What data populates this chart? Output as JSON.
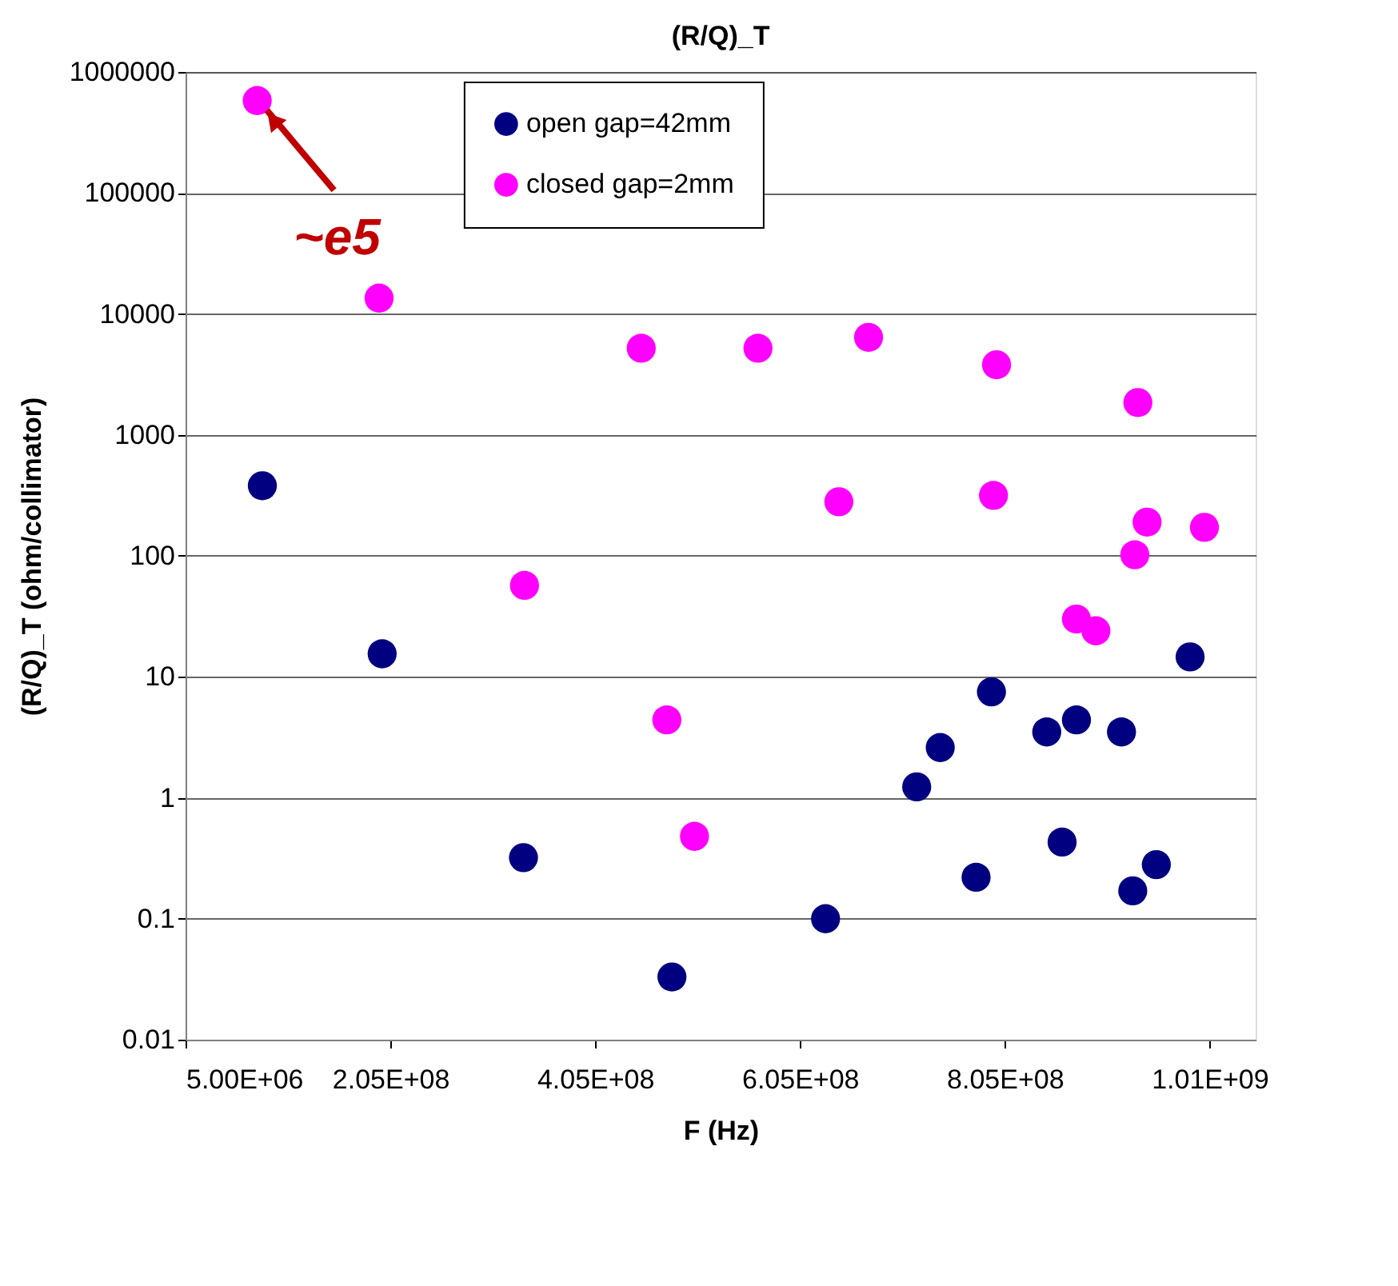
{
  "chart_data": {
    "type": "scatter",
    "title": "(R/Q)_T",
    "xlabel": "F (Hz)",
    "ylabel": "(R/Q)_T (ohm/collimator)",
    "log": "y",
    "grid": "y",
    "legend": "top",
    "marker": "circle",
    "xlim": [
      5000000,
      1050000000
    ],
    "xticks": [
      {
        "value": 5000000,
        "label": "5.00E+06"
      },
      {
        "value": 205000000,
        "label": "2.05E+08"
      },
      {
        "value": 405000000,
        "label": "4.05E+08"
      },
      {
        "value": 605000000,
        "label": "6.05E+08"
      },
      {
        "value": 805000000,
        "label": "8.05E+08"
      },
      {
        "value": 1005000000,
        "label": "1.01E+09"
      }
    ],
    "ylim": [
      0.01,
      1000000
    ],
    "yticks": [
      0.01,
      0.1,
      1,
      10,
      100,
      1000,
      10000,
      100000,
      1000000
    ],
    "annotations": [
      {
        "text": "~e5",
        "x": 75000000,
        "y": 580000
      }
    ],
    "series": [
      {
        "name": "open gap=42mm",
        "color": "#000080",
        "x": [
          80000000,
          197000000,
          335000000,
          480000000,
          630000000,
          719000000,
          742000000,
          792000000,
          846000000,
          875000000,
          919000000,
          986000000,
          777000000,
          861000000,
          930000000,
          953000000
        ],
        "values": [
          380,
          15.5,
          0.32,
          0.033,
          0.1,
          1.23,
          2.6,
          7.5,
          3.5,
          4.4,
          3.5,
          14.6,
          0.22,
          0.43,
          0.17,
          0.28
        ]
      },
      {
        "name": "closed gap=2mm",
        "color": "#ff00ff",
        "x": [
          75000000,
          194000000,
          450000000,
          564000000,
          672000000,
          797000000,
          935000000,
          643000000,
          794000000,
          944000000,
          1000000000,
          932000000,
          336000000,
          875000000,
          894000000,
          475000000,
          502000000
        ],
        "values": [
          580000,
          13500,
          5200,
          5200,
          6400,
          3800,
          1850,
          280,
          316,
          190,
          172,
          102,
          57,
          30,
          24,
          4.4,
          0.48
        ]
      }
    ]
  }
}
